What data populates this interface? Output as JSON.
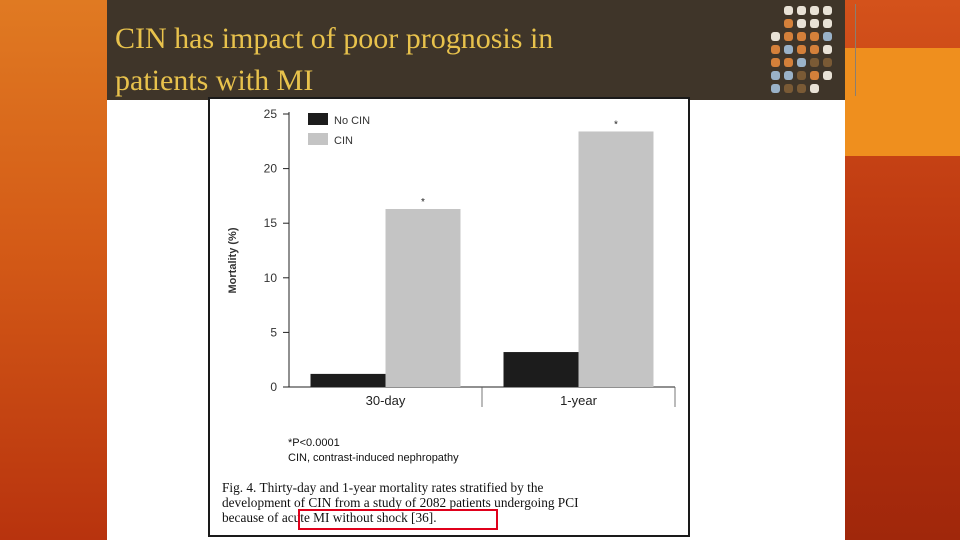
{
  "slide": {
    "title_line1": "CIN has impact of poor prognosis in",
    "title_line2": "patients with MI"
  },
  "colors": {
    "title_bar": "#3f3529",
    "title_text": "#e8c24c",
    "accent_orange": "#ef8f1e",
    "accent_red": "#a62a0b",
    "highlight_box": "#e0001b",
    "dots": [
      "#e9e2d6",
      "#d4803a",
      "#9ab2c8",
      "#7a5a35"
    ]
  },
  "figure": {
    "note_line1": "*P<0.0001",
    "note_line2": "CIN, contrast-induced nephropathy",
    "caption_line1": "Fig. 4. Thirty-day and 1-year mortality rates stratified by the",
    "caption_line2": "development of CIN from a study of 2082 patients undergoing PCI",
    "caption_line3_prefix": "because of ",
    "caption_line3_highlight": "acute MI without shock [36]."
  },
  "chart_data": {
    "type": "bar",
    "categories": [
      "30-day",
      "1-year"
    ],
    "series": [
      {
        "name": "No CIN",
        "values": [
          1.2,
          3.2
        ],
        "color": "#1c1c1c"
      },
      {
        "name": "CIN",
        "values": [
          16.3,
          23.4
        ],
        "color": "#c4c4c4"
      }
    ],
    "significance": [
      "*",
      "*"
    ],
    "ylabel": "Mortality (%)",
    "xlabel": "",
    "ylim": [
      0,
      25
    ],
    "yticks": [
      0,
      5,
      10,
      15,
      20,
      25
    ],
    "legend_position": "top-left",
    "grid": false
  }
}
